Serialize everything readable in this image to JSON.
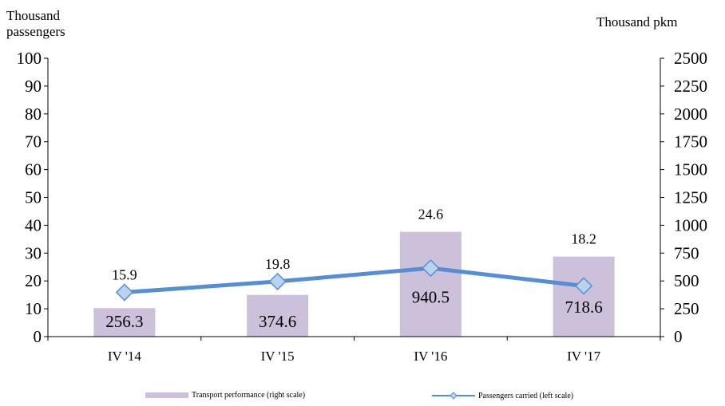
{
  "chart_data": {
    "type": "bar",
    "categories": [
      "IV '14",
      "IV '15",
      "IV '16",
      "IV '17"
    ],
    "series": [
      {
        "name": "Transport performance (right scale)",
        "type": "bar",
        "axis": "right",
        "values": [
          256.3,
          374.6,
          940.5,
          718.6
        ],
        "data_labels": [
          "256.3",
          "374.6",
          "940.5",
          "718.6"
        ],
        "color": "#ccc0da"
      },
      {
        "name": "Passengers carried (left scale)",
        "type": "line",
        "axis": "left",
        "values": [
          15.9,
          19.8,
          24.6,
          18.2
        ],
        "data_labels": [
          "15.9",
          "19.8",
          "24.6",
          "18.2"
        ],
        "color": "#558ed5",
        "marker_fill": "#b9d3ee"
      }
    ],
    "left_axis": {
      "title": "Thousand passengers",
      "title_lines": [
        "Thousand",
        "passengers"
      ],
      "range": [
        0,
        100
      ],
      "ticks": [
        "0",
        "10",
        "20",
        "30",
        "40",
        "50",
        "60",
        "70",
        "80",
        "90",
        "100"
      ]
    },
    "right_axis": {
      "title": "Thousand pkm",
      "range": [
        0,
        2500
      ],
      "ticks": [
        "0",
        "250",
        "500",
        "750",
        "1000",
        "1250",
        "1500",
        "1750",
        "2000",
        "2250",
        "2500"
      ]
    },
    "grid": false,
    "legend_position": "bottom"
  }
}
